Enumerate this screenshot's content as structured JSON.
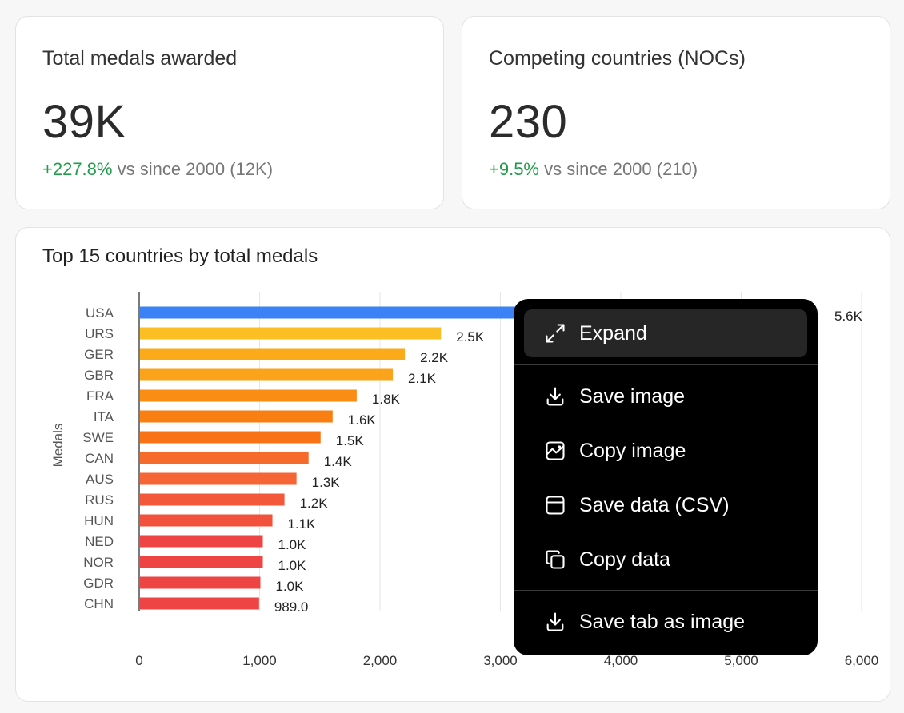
{
  "kpis": [
    {
      "title": "Total medals awarded",
      "value": "39K",
      "delta": "+227.8%",
      "comparison": "vs since 2000 (12K)"
    },
    {
      "title": "Competing countries (NOCs)",
      "value": "230",
      "delta": "+9.5%",
      "comparison": "vs since 2000 (210)"
    }
  ],
  "chart": {
    "title": "Top 15 countries by total medals"
  },
  "chart_data": {
    "type": "bar",
    "orientation": "horizontal",
    "title": "Top 15 countries by total medals",
    "ylabel": "Medals",
    "xlabel": "",
    "categories": [
      "USA",
      "URS",
      "GER",
      "GBR",
      "FRA",
      "ITA",
      "SWE",
      "CAN",
      "AUS",
      "RUS",
      "HUN",
      "NED",
      "NOR",
      "GDR",
      "CHN"
    ],
    "values": [
      5600,
      2500,
      2200,
      2100,
      1800,
      1600,
      1500,
      1400,
      1300,
      1200,
      1100,
      1020,
      1020,
      1000,
      989
    ],
    "data_labels": [
      "5.6K",
      "2.5K",
      "2.2K",
      "2.1K",
      "1.8K",
      "1.6K",
      "1.5K",
      "1.4K",
      "1.3K",
      "1.2K",
      "1.1K",
      "1.0K",
      "1.0K",
      "1.0K",
      "989.0"
    ],
    "colors": [
      "#3b82f6",
      "#fbbf24",
      "#fbaa1a",
      "#fba31a",
      "#fa8e14",
      "#f97f12",
      "#f97316",
      "#f66a2c",
      "#f56535",
      "#f4583a",
      "#f2523b",
      "#ef4444",
      "#ef4444",
      "#ef4444",
      "#ef4444"
    ],
    "xlim": [
      0,
      6000
    ],
    "xticks": [
      "0",
      "1,000",
      "2,000",
      "3,000",
      "4,000",
      "5,000",
      "6,000"
    ],
    "grid": true
  },
  "menu": {
    "items": [
      {
        "label": "Expand",
        "icon": "expand-icon"
      },
      {
        "label": "Save image",
        "icon": "download-icon"
      },
      {
        "label": "Copy image",
        "icon": "image-icon"
      },
      {
        "label": "Save data (CSV)",
        "icon": "table-icon"
      },
      {
        "label": "Copy data",
        "icon": "copy-icon"
      },
      {
        "label": "Save tab as image",
        "icon": "download-icon"
      }
    ]
  }
}
